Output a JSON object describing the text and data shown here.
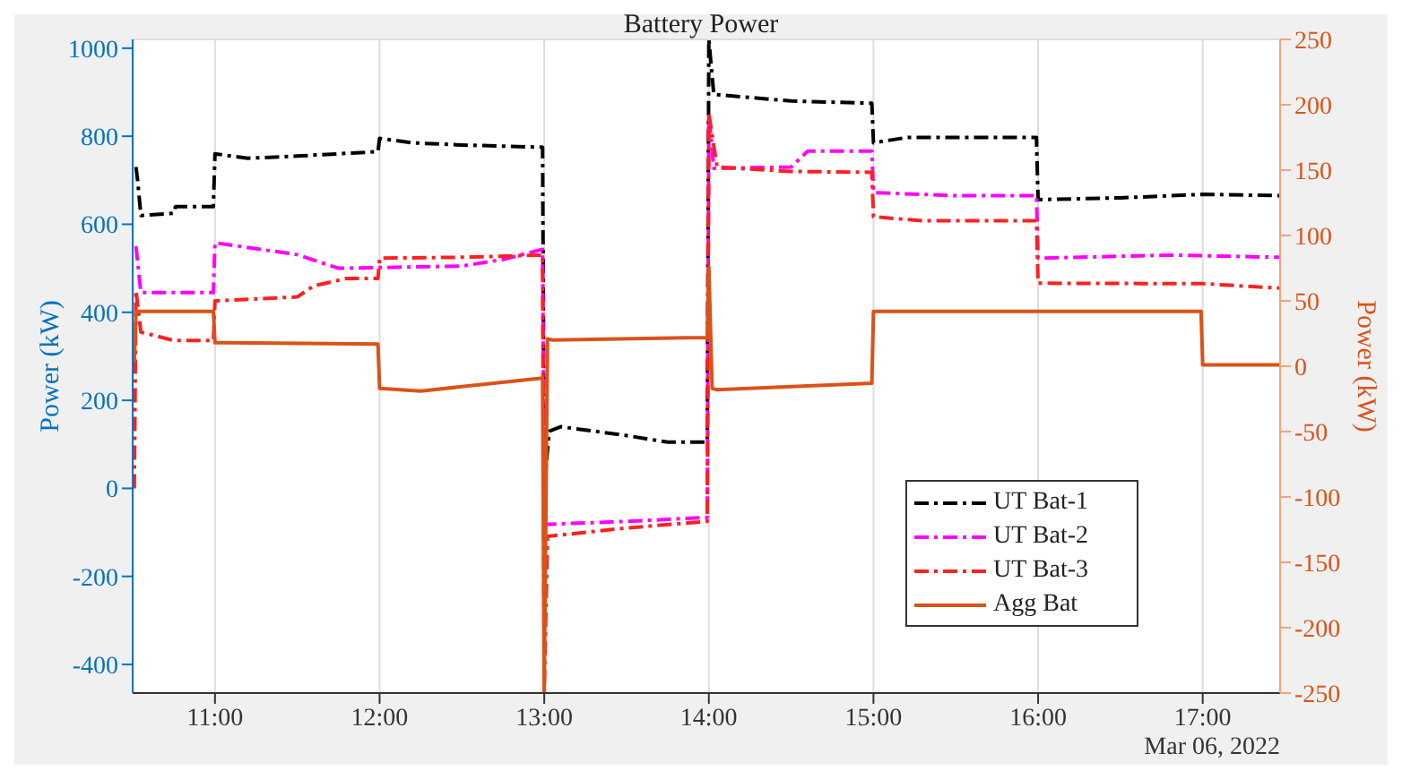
{
  "chart_data": {
    "type": "line",
    "title": "Battery Power",
    "ylabel": "Power (kW)",
    "y2label": "Power (kW)",
    "annotations": [
      "Mar 06, 2022"
    ],
    "xlim": [
      10.5,
      17.47
    ],
    "xticks": [
      {
        "value": 11,
        "label": "11:00"
      },
      {
        "value": 12,
        "label": "12:00"
      },
      {
        "value": 13,
        "label": "13:00"
      },
      {
        "value": 14,
        "label": "14:00"
      },
      {
        "value": 15,
        "label": "15:00"
      },
      {
        "value": 16,
        "label": "16:00"
      },
      {
        "value": 17,
        "label": "17:00"
      }
    ],
    "ylim": [
      -465,
      1020
    ],
    "yticks": [
      -400,
      -200,
      0,
      200,
      400,
      600,
      800,
      1000
    ],
    "y2lim": [
      -250,
      250
    ],
    "y2ticks": [
      -250,
      -200,
      -150,
      -100,
      -50,
      0,
      50,
      100,
      150,
      200,
      250
    ],
    "grid": true,
    "legend": "bottom right",
    "series": [
      {
        "name": "UT Bat-1",
        "color": "#000000",
        "line_style": "dashed",
        "x": [
          10.52,
          10.53,
          10.55,
          10.75,
          10.76,
          10.99,
          11,
          11.2,
          11.5,
          11.99,
          12,
          12.2,
          12.5,
          12.99,
          13,
          13.03,
          13.1,
          13.5,
          13.75,
          13.99,
          14,
          14.03,
          14.5,
          14.99,
          15,
          15.2,
          15.99,
          16,
          16.5,
          17,
          17.47
        ],
        "values": [
          730,
          700,
          620,
          625,
          640,
          640,
          760,
          750,
          755,
          765,
          795,
          785,
          780,
          775,
          0,
          130,
          140,
          120,
          105,
          105,
          1020,
          895,
          880,
          875,
          785,
          797,
          797,
          656,
          660,
          668,
          665
        ]
      },
      {
        "name": "UT Bat-2",
        "color": "#ff00ff",
        "line_style": "dashed",
        "x": [
          10.52,
          10.55,
          10.99,
          11,
          11.5,
          11.75,
          12.5,
          12.75,
          12.99,
          13,
          13.5,
          13.99,
          14,
          14.03,
          14.5,
          14.6,
          14.99,
          15,
          15.5,
          15.99,
          16,
          16.8,
          17.47
        ],
        "values": [
          550,
          445,
          445,
          558,
          531,
          500,
          505,
          520,
          543,
          -82,
          -75,
          -66,
          850,
          727,
          730,
          766,
          766,
          672,
          665,
          665,
          523,
          530,
          525
        ]
      },
      {
        "name": "UT Bat-3",
        "color": "#ff2020",
        "line_style": "dashed",
        "x": [
          10.51,
          10.52,
          10.55,
          10.75,
          10.99,
          11,
          11.5,
          11.6,
          11.8,
          11.99,
          12,
          12.5,
          12.99,
          13,
          13.02,
          13.5,
          13.99,
          14,
          14.05,
          14.5,
          14.99,
          15,
          15.3,
          15.99,
          16,
          17,
          17.47
        ],
        "values": [
          0,
          450,
          355,
          336,
          336,
          426,
          435,
          460,
          477,
          477,
          523,
          525,
          530,
          -460,
          -109,
          -90,
          -75,
          851,
          730,
          720,
          718,
          617,
          608,
          608,
          466,
          465,
          455
        ]
      },
      {
        "name": "Agg Bat",
        "color": "#d95319",
        "line_style": "solid",
        "axis": "y2",
        "x": [
          10.51,
          10.52,
          10.99,
          11,
          11.99,
          12,
          12.25,
          12.99,
          13,
          13.02,
          13.05,
          13.99,
          14,
          14.02,
          14.05,
          14.99,
          15,
          16.99,
          17,
          17.47
        ],
        "values": [
          3,
          42,
          42,
          18,
          17,
          -17,
          -19,
          -9,
          -250,
          21,
          20,
          22,
          76,
          -17,
          -18,
          -13,
          42,
          42,
          1,
          1
        ]
      }
    ]
  }
}
